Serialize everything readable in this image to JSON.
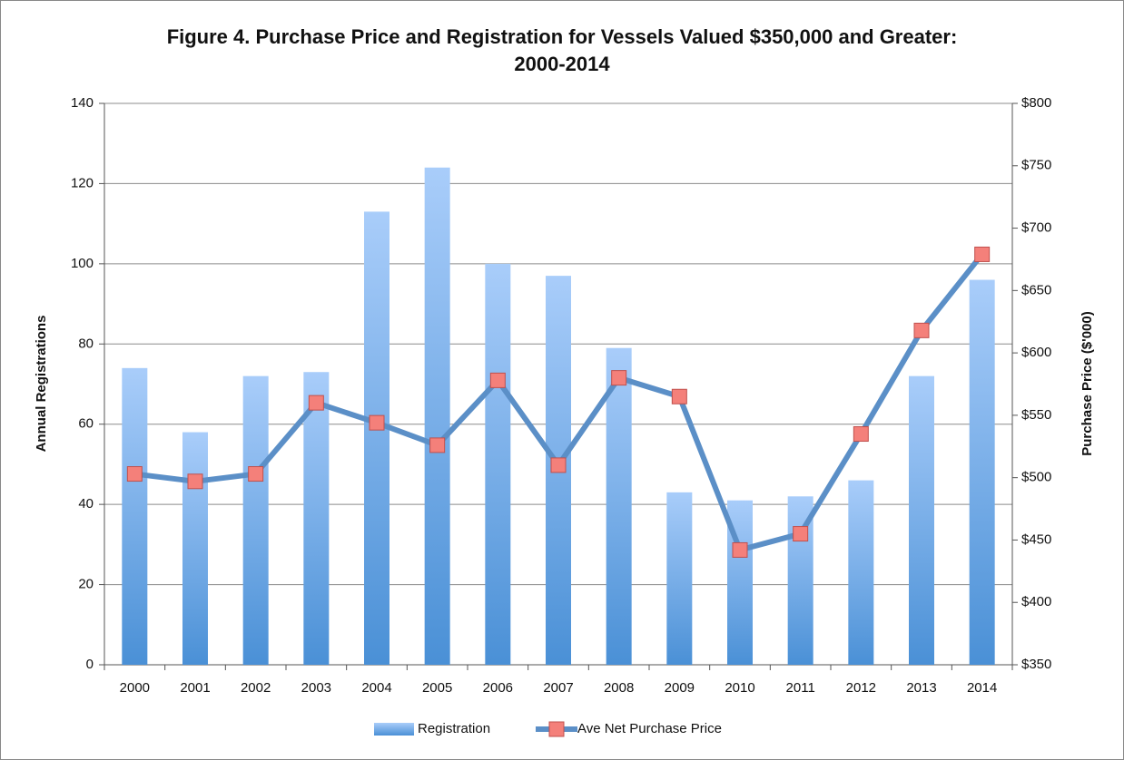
{
  "chart_data": {
    "type": "bar-line",
    "title": "Figure 4. Purchase Price and Registration for Vessels Valued $350,000 and Greater: 2000-2014",
    "y_label": "Annual Registrations",
    "y2_label": "Purchase Price ($'000)",
    "categories": [
      "2000",
      "2001",
      "2002",
      "2003",
      "2004",
      "2005",
      "2006",
      "2007",
      "2008",
      "2009",
      "2010",
      "2011",
      "2012",
      "2013",
      "2014"
    ],
    "series": [
      {
        "name": "Registration",
        "type": "bar",
        "color": "#5b9bd5",
        "values": [
          74,
          58,
          72,
          73,
          113,
          124,
          100,
          97,
          79,
          43,
          41,
          42,
          46,
          72,
          96
        ]
      },
      {
        "name": "Ave Net Purchase Price",
        "type": "line",
        "axis": "y2",
        "color": "#5b8fc7",
        "marker_color": "#f4807a",
        "values": [
          503,
          497,
          503,
          560,
          544,
          526,
          578,
          510,
          580,
          565,
          442,
          455,
          535,
          618,
          679
        ]
      }
    ],
    "ylim": [
      0,
      140
    ],
    "yticks": [
      0,
      20,
      40,
      60,
      80,
      100,
      120,
      140
    ],
    "y2lim": [
      350,
      800
    ],
    "y2ticks": [
      {
        "value": 350,
        "label": "$350"
      },
      {
        "value": 400,
        "label": "$400"
      },
      {
        "value": 450,
        "label": "$450"
      },
      {
        "value": 500,
        "label": "$500"
      },
      {
        "value": 550,
        "label": "$550"
      },
      {
        "value": 600,
        "label": "$600"
      },
      {
        "value": 650,
        "label": "$650"
      },
      {
        "value": 700,
        "label": "$700"
      },
      {
        "value": 750,
        "label": "$750"
      },
      {
        "value": 800,
        "label": "$800"
      }
    ],
    "grid": true,
    "legend": "bottom"
  }
}
